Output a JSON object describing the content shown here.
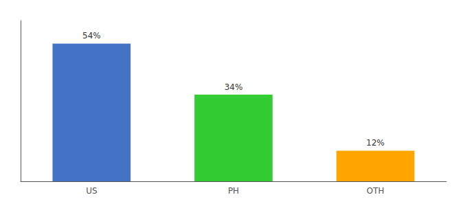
{
  "chart_data": {
    "type": "bar",
    "categories": [
      "US",
      "PH",
      "OTH"
    ],
    "values": [
      54,
      34,
      12
    ],
    "value_labels": [
      "54%",
      "34%",
      "12%"
    ],
    "colors": [
      "#4472C4",
      "#33CC33",
      "#FFA500"
    ],
    "ylim": [
      0,
      63
    ],
    "data_labels": true,
    "grid": false,
    "tick_labels": "x"
  }
}
